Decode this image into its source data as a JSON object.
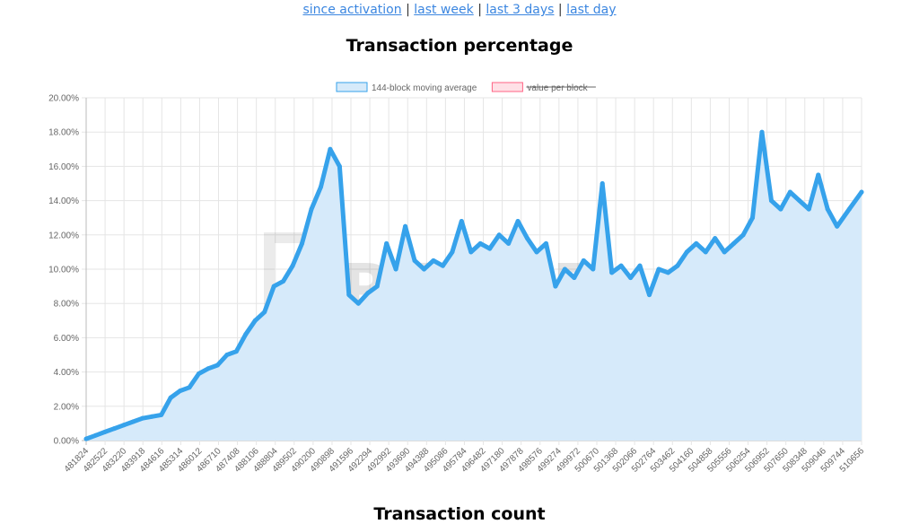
{
  "nav": {
    "links": [
      "since activation",
      "last week",
      "last 3 days",
      "last day"
    ],
    "separator": "|"
  },
  "watermark": "TREZOR",
  "next_section_title": "Transaction count",
  "chart_data": {
    "type": "area",
    "title": "Transaction percentage",
    "ylim": [
      0,
      20
    ],
    "y_ticks": [
      "0.00%",
      "2.00%",
      "4.00%",
      "6.00%",
      "8.00%",
      "10.00%",
      "12.00%",
      "14.00%",
      "16.00%",
      "18.00%",
      "20.00%"
    ],
    "x_ticks": [
      "481824",
      "482522",
      "483220",
      "483918",
      "484616",
      "485314",
      "486012",
      "486710",
      "487408",
      "488106",
      "488804",
      "489502",
      "490200",
      "490898",
      "491596",
      "492294",
      "492992",
      "493690",
      "494388",
      "495086",
      "495784",
      "496482",
      "497180",
      "497878",
      "498576",
      "499274",
      "499972",
      "500670",
      "501368",
      "502066",
      "502764",
      "503462",
      "504160",
      "504858",
      "505556",
      "506254",
      "506952",
      "507650",
      "508348",
      "509046",
      "509744",
      "510656"
    ],
    "grid": true,
    "legend_position": "top",
    "series": [
      {
        "name": "144-block moving average",
        "color": "#36a2eb",
        "fill": "#d6eafa",
        "hidden": false,
        "x": [
          481824,
          482173,
          482522,
          482871,
          483220,
          483569,
          483918,
          484267,
          484616,
          484965,
          485314,
          485663,
          486012,
          486361,
          486710,
          487059,
          487408,
          487757,
          488106,
          488455,
          488804,
          489153,
          489502,
          489851,
          490200,
          490549,
          490898,
          491247,
          491596,
          491945,
          492294,
          492643,
          492992,
          493341,
          493690,
          494039,
          494388,
          494737,
          495086,
          495435,
          495784,
          496133,
          496482,
          496831,
          497180,
          497529,
          497878,
          498227,
          498576,
          498925,
          499274,
          499623,
          499972,
          500321,
          500670,
          501019,
          501368,
          501717,
          502066,
          502415,
          502764,
          503113,
          503462,
          503811,
          504160,
          504509,
          504858,
          505207,
          505556,
          505905,
          506254,
          506603,
          506952,
          507301,
          507650,
          507999,
          508348,
          508697,
          509046,
          509395,
          509744,
          510200,
          510656
        ],
        "values": [
          0.1,
          0.3,
          0.5,
          0.7,
          0.9,
          1.1,
          1.3,
          1.4,
          1.5,
          2.5,
          2.9,
          3.1,
          3.9,
          4.2,
          4.4,
          5.0,
          5.2,
          6.2,
          7.0,
          7.5,
          9.0,
          9.3,
          10.2,
          11.5,
          13.5,
          14.8,
          17.0,
          16.0,
          8.5,
          8.0,
          8.6,
          9.0,
          11.5,
          10.0,
          12.5,
          10.5,
          10.0,
          10.5,
          10.2,
          11.0,
          12.8,
          11.0,
          11.5,
          11.2,
          12.0,
          11.5,
          12.8,
          11.8,
          11.0,
          11.5,
          9.0,
          10.0,
          9.5,
          10.5,
          10.0,
          15.0,
          9.8,
          10.2,
          9.5,
          10.2,
          8.5,
          10.0,
          9.8,
          10.2,
          11.0,
          11.5,
          11.0,
          11.8,
          11.0,
          11.5,
          12.0,
          13.0,
          18.0,
          14.0,
          13.5,
          14.5,
          14.0,
          13.5,
          15.5,
          13.5,
          12.5,
          13.5,
          14.5
        ]
      },
      {
        "name": "value per block",
        "color": "#ff6384",
        "fill": "#ffe0e6",
        "hidden": true,
        "values": []
      }
    ]
  }
}
